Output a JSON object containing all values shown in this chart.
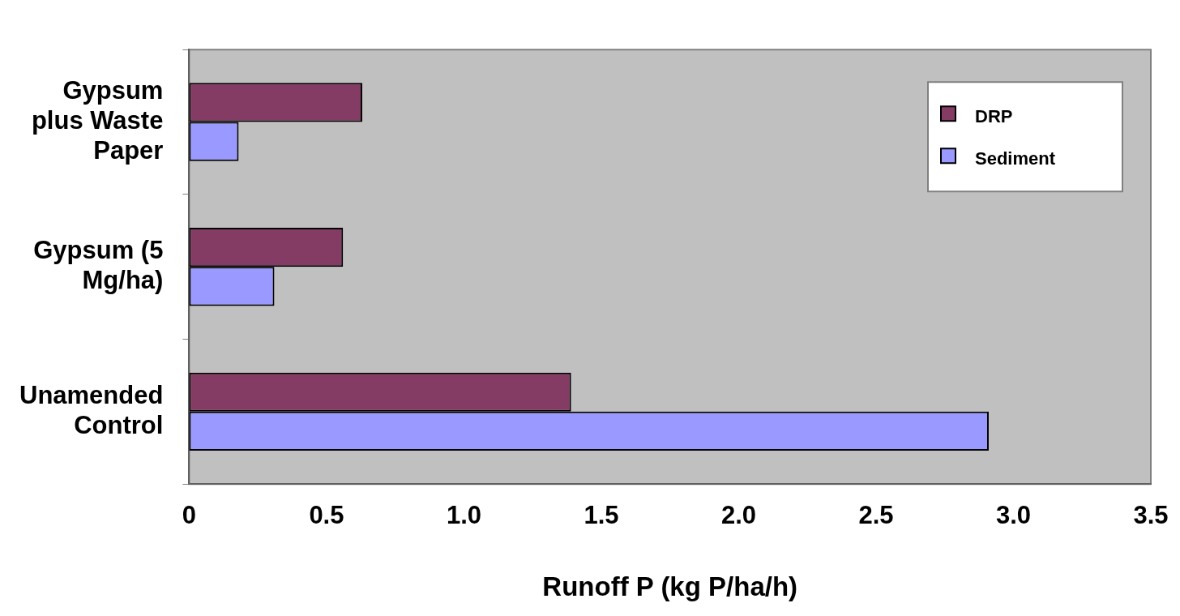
{
  "chart_data": {
    "type": "bar",
    "orientation": "horizontal",
    "xlabel": "Runoff P (kg P/ha/h)",
    "categories": [
      "Gypsum plus Waste Paper",
      "Gypsum (5 Mg/ha)",
      "Unamended Control"
    ],
    "series": [
      {
        "name": "DRP",
        "color": "#843c64",
        "values": [
          0.63,
          0.56,
          1.39
        ]
      },
      {
        "name": "Sediment",
        "color": "#9999ff",
        "values": [
          0.18,
          0.31,
          2.91
        ]
      }
    ],
    "xlim": [
      0,
      3.5
    ],
    "xticks": [
      0,
      0.5,
      {
        "value": 1,
        "label": "1.0"
      },
      1.5,
      {
        "value": 2,
        "label": "2.0"
      },
      2.5,
      {
        "value": 3,
        "label": "3.0"
      },
      3.5
    ],
    "grid": false,
    "legend": "top right"
  }
}
